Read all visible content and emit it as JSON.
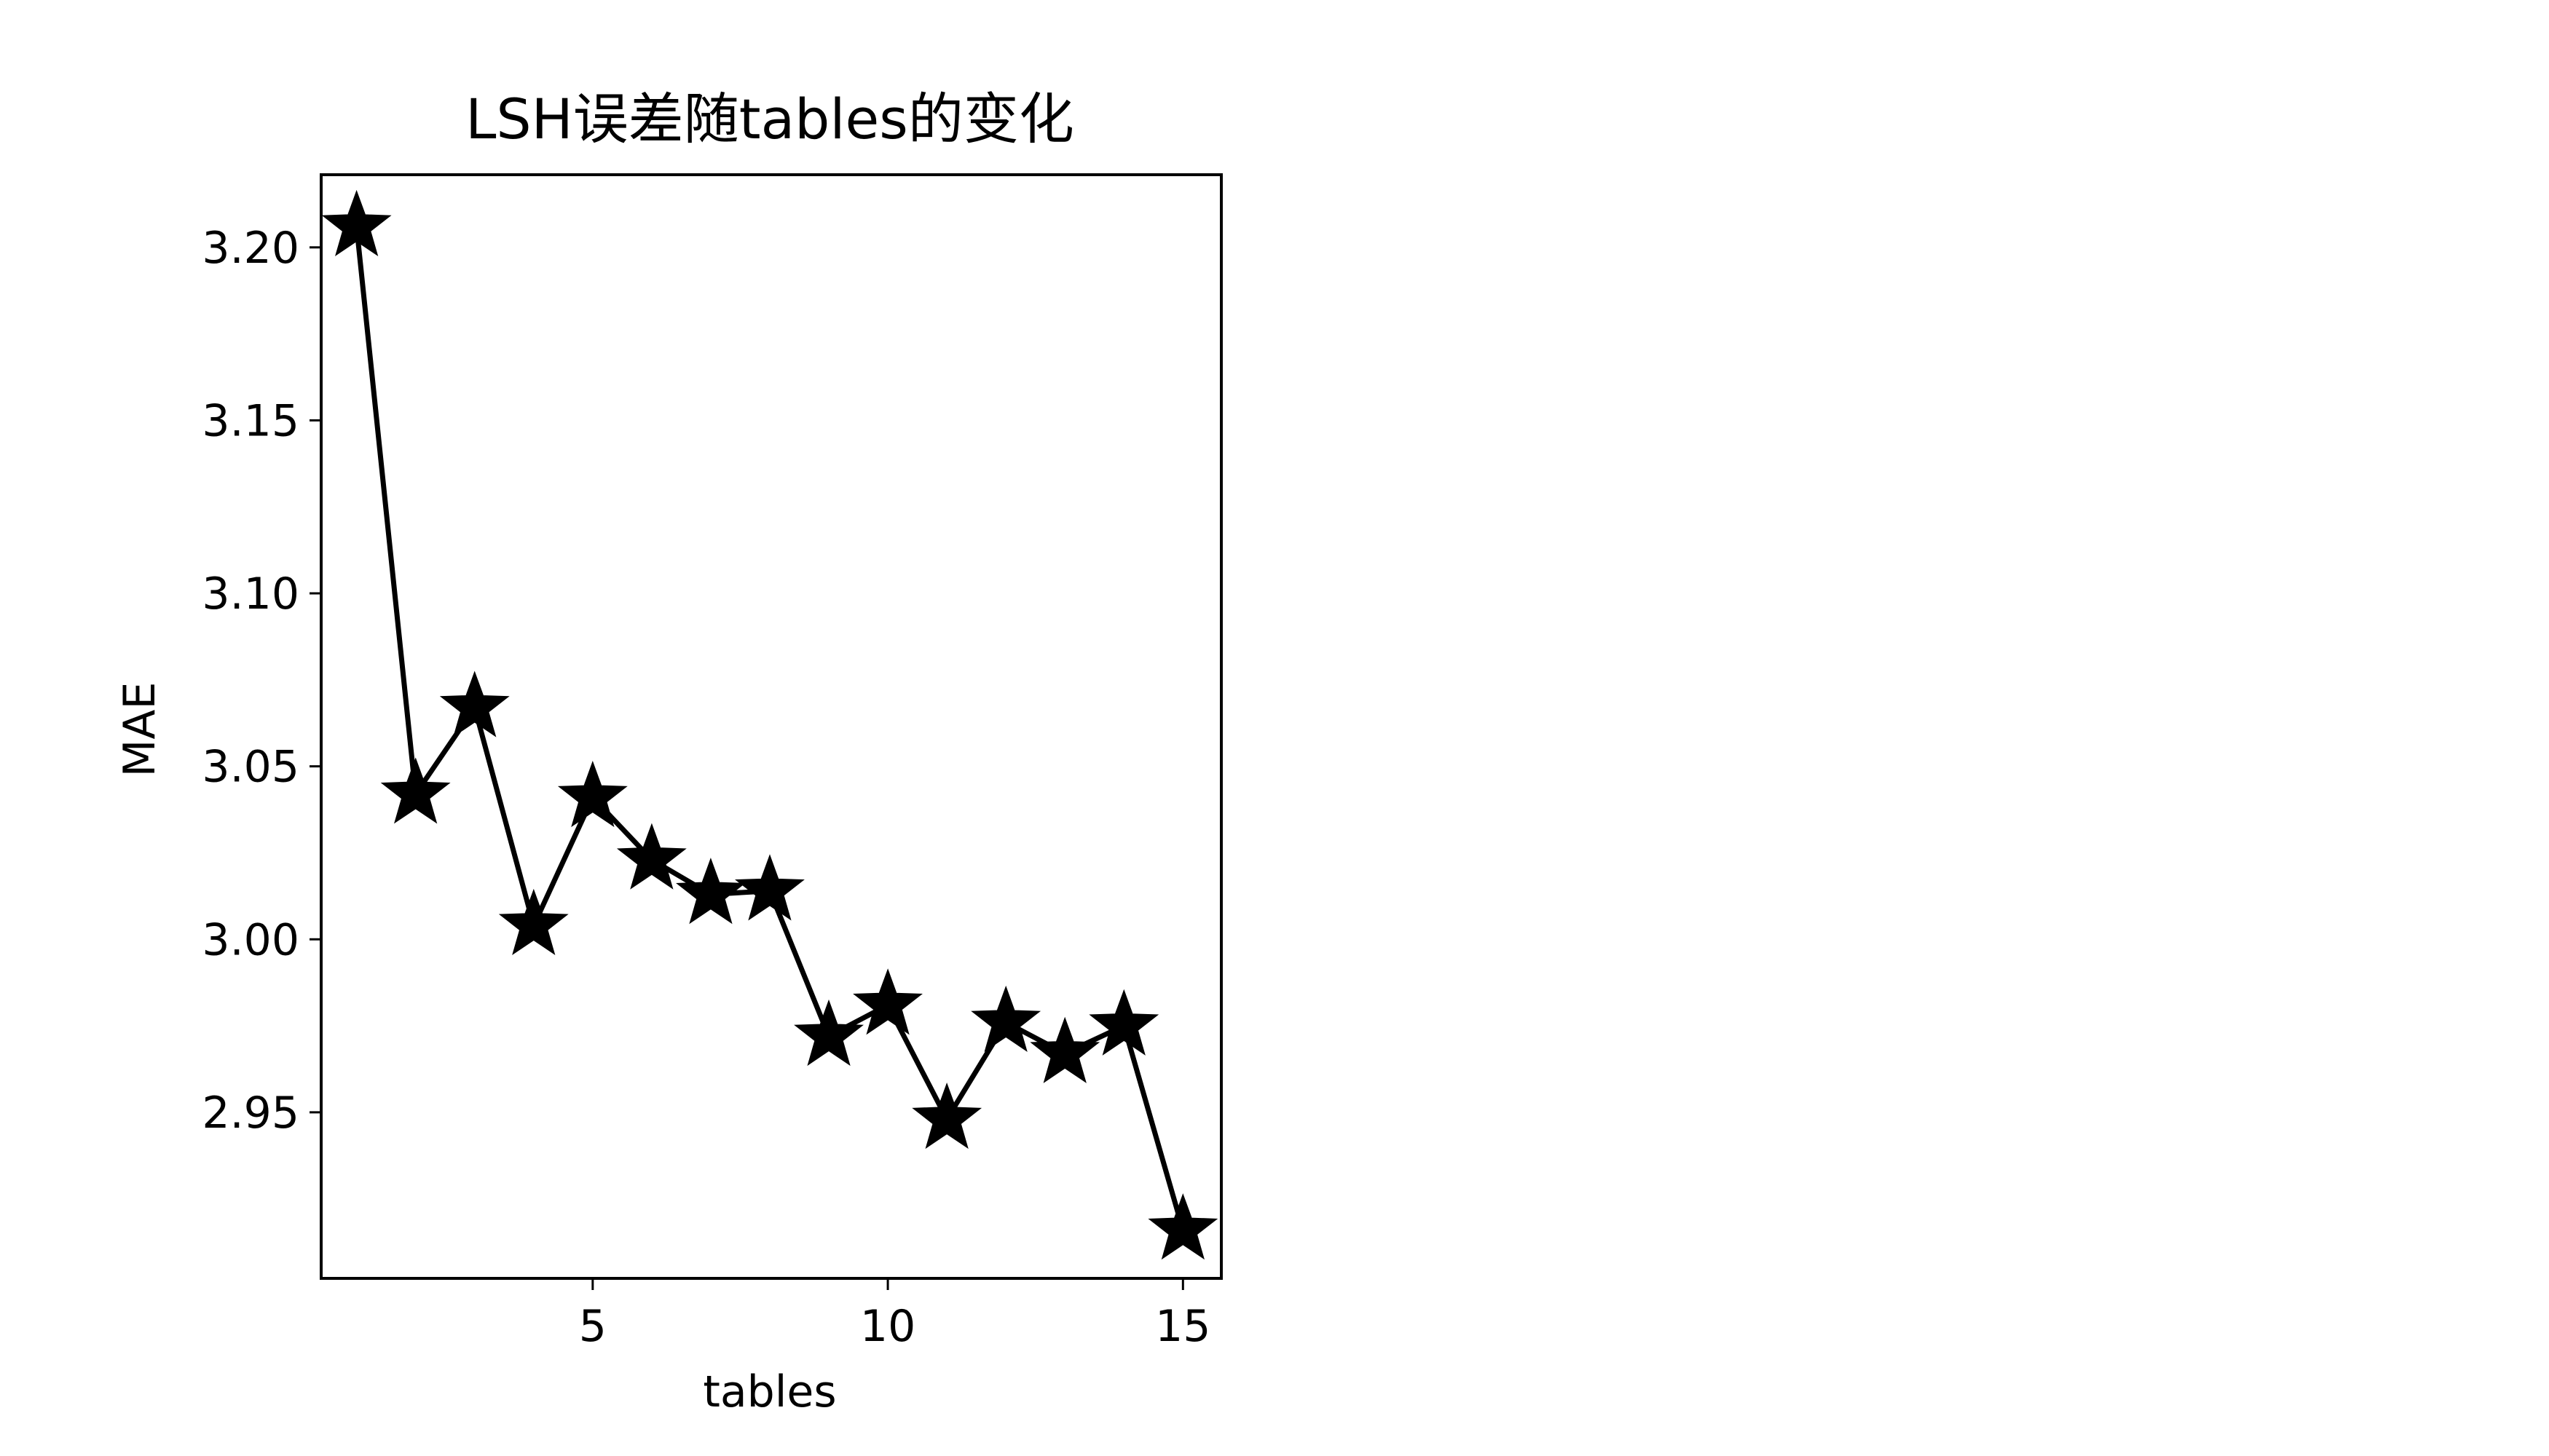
{
  "chart_data": {
    "type": "line",
    "title": "LSH误差随tables的变化",
    "xlabel": "tables",
    "ylabel": "MAE",
    "x": [
      1,
      2,
      3,
      4,
      5,
      6,
      7,
      8,
      9,
      10,
      11,
      12,
      13,
      14,
      15
    ],
    "series": [
      {
        "values": [
          3.206,
          3.042,
          3.067,
          3.004,
          3.041,
          3.023,
          3.013,
          3.014,
          2.972,
          2.981,
          2.948,
          2.976,
          2.967,
          2.975,
          2.916
        ]
      }
    ],
    "xlim": [
      0.4,
      15.65
    ],
    "ylim": [
      2.902,
      3.221
    ],
    "xticks": [
      5,
      10,
      15
    ],
    "xtick_labels": [
      "5",
      "10",
      "15"
    ],
    "yticks": [
      2.95,
      3.0,
      3.05,
      3.1,
      3.15,
      3.2
    ],
    "ytick_labels": [
      "2.95",
      "3.00",
      "3.05",
      "3.10",
      "3.15",
      "3.20"
    ],
    "marker": "star",
    "line_color": "#000000",
    "marker_color": "#000000",
    "grid": false,
    "legend": "none"
  }
}
